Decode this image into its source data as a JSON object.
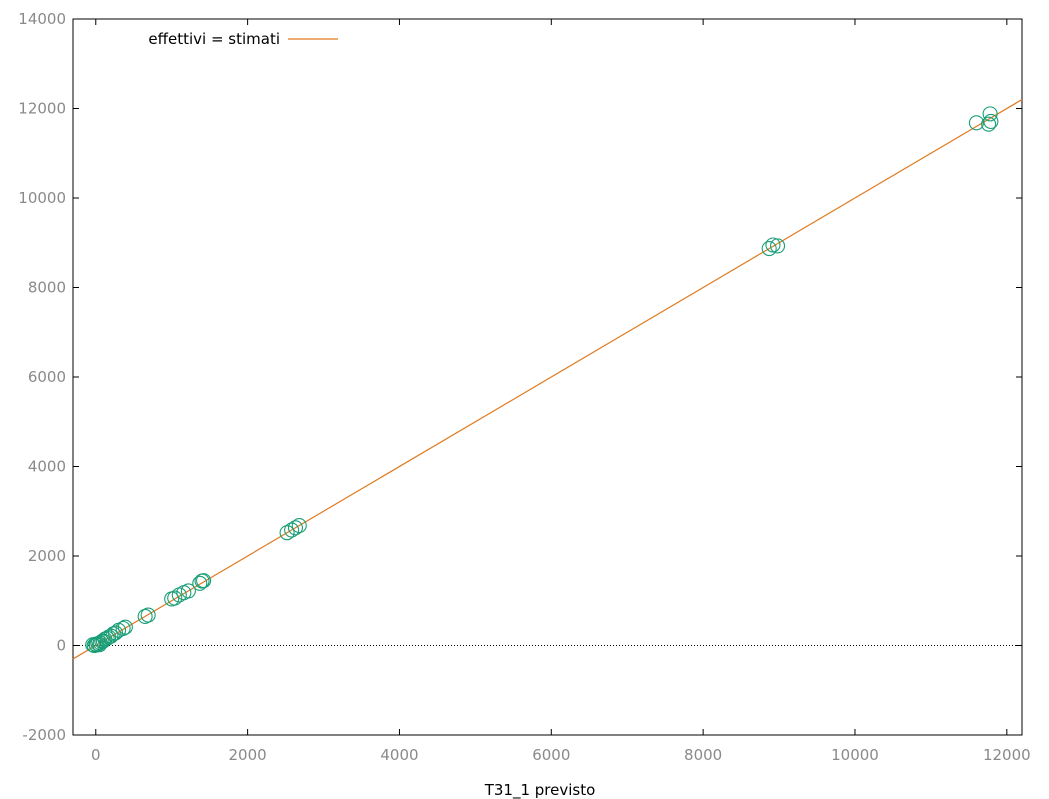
{
  "chart_data": {
    "type": "scatter",
    "xlabel": "T31_1 previsto",
    "ylabel": "",
    "xlim": [
      -300,
      12200
    ],
    "ylim": [
      -2000,
      14000
    ],
    "xticks": [
      0,
      2000,
      4000,
      6000,
      8000,
      10000,
      12000
    ],
    "yticks": [
      -2000,
      0,
      2000,
      4000,
      6000,
      8000,
      10000,
      12000,
      14000
    ],
    "xtick_labels": [
      "0",
      "2000",
      "4000",
      "6000",
      "8000",
      "10000",
      "12000"
    ],
    "ytick_labels": [
      "-2000",
      "0",
      "2000",
      "4000",
      "6000",
      "8000",
      "10000",
      "12000",
      "14000"
    ],
    "zero_line": true,
    "legend_position": "top-left",
    "series": [
      {
        "kind": "points",
        "marker": "open-circle",
        "color": "#1a9e77",
        "points": [
          [
            -40,
            15
          ],
          [
            -20,
            0
          ],
          [
            0,
            30
          ],
          [
            10,
            10
          ],
          [
            30,
            40
          ],
          [
            50,
            20
          ],
          [
            60,
            60
          ],
          [
            80,
            90
          ],
          [
            100,
            100
          ],
          [
            120,
            140
          ],
          [
            150,
            160
          ],
          [
            170,
            190
          ],
          [
            200,
            210
          ],
          [
            230,
            260
          ],
          [
            260,
            280
          ],
          [
            300,
            340
          ],
          [
            360,
            380
          ],
          [
            390,
            410
          ],
          [
            650,
            650
          ],
          [
            690,
            680
          ],
          [
            1000,
            1040
          ],
          [
            1040,
            1060
          ],
          [
            1100,
            1130
          ],
          [
            1160,
            1180
          ],
          [
            1220,
            1220
          ],
          [
            1370,
            1390
          ],
          [
            1400,
            1440
          ],
          [
            1420,
            1450
          ],
          [
            2520,
            2520
          ],
          [
            2580,
            2580
          ],
          [
            2630,
            2630
          ],
          [
            2680,
            2680
          ],
          [
            8870,
            8870
          ],
          [
            8920,
            8950
          ],
          [
            8980,
            8930
          ],
          [
            11600,
            11680
          ],
          [
            11760,
            11650
          ],
          [
            11790,
            11710
          ],
          [
            11780,
            11880
          ]
        ]
      },
      {
        "name": "effettivi = stimati",
        "kind": "line",
        "color": "#e07a1f",
        "slope": 1,
        "intercept": 0
      }
    ]
  }
}
